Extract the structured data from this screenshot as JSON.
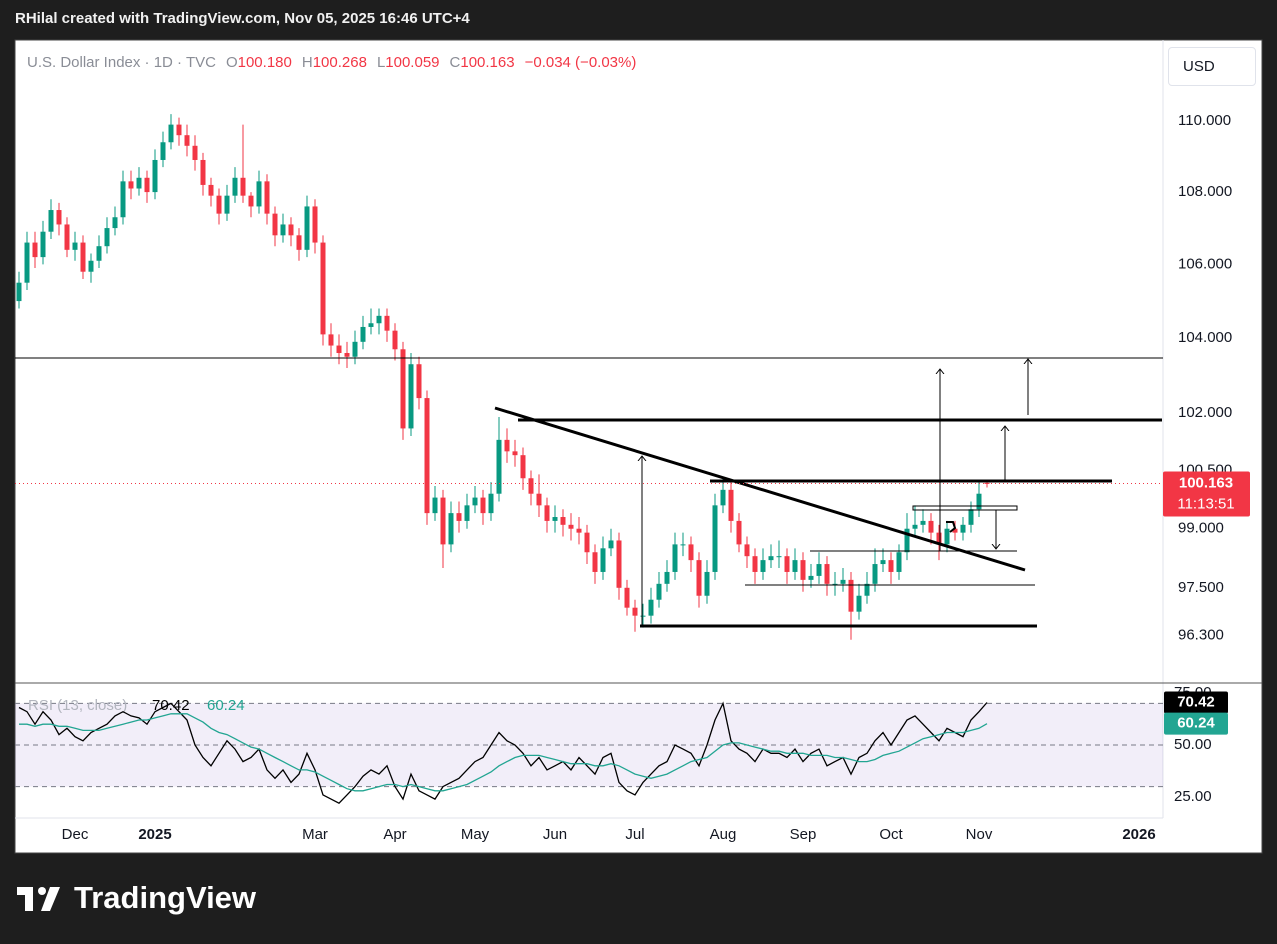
{
  "header": "RHilal created with TradingView.com, Nov 05, 2025 16:46 UTC+4",
  "footer": "TradingView",
  "chart_data": [
    {
      "type": "candlestick",
      "title": "U.S. Dollar Index · 1D · TVC",
      "legend": [
        {
          "label": "O",
          "value": "100.180"
        },
        {
          "label": "H",
          "value": "100.268"
        },
        {
          "label": "L",
          "value": "100.059"
        },
        {
          "label": "C",
          "value": "100.163"
        }
      ],
      "change": "−0.034 (−0.03%)",
      "currency": "USD",
      "last_price_label": "100.163",
      "countdown": "11:13:51",
      "up_color": "#089981",
      "down_color": "#f23645",
      "log_scale": true,
      "grid": false,
      "xlim": [
        -0.5,
        143
      ],
      "xticks": [
        {
          "value": 7,
          "label": "Dec"
        },
        {
          "value": 17,
          "label": "2025"
        },
        {
          "value": 37,
          "label": "Mar"
        },
        {
          "value": 47,
          "label": "Apr"
        },
        {
          "value": 57,
          "label": "May"
        },
        {
          "value": 67,
          "label": "Jun"
        },
        {
          "value": 77,
          "label": "Jul"
        },
        {
          "value": 88,
          "label": "Aug"
        },
        {
          "value": 98,
          "label": "Sep"
        },
        {
          "value": 109,
          "label": "Oct"
        },
        {
          "value": 120,
          "label": "Nov"
        },
        {
          "value": 140,
          "label": "2026"
        }
      ],
      "ylim": [
        95.13,
        112.33
      ],
      "yticks": [
        {
          "value": 110,
          "label": "110.000"
        },
        {
          "value": 108,
          "label": "108.000"
        },
        {
          "value": 106,
          "label": "106.000"
        },
        {
          "value": 104,
          "label": "104.000"
        },
        {
          "value": 102,
          "label": "102.000"
        },
        {
          "value": 100.5,
          "label": "100.500"
        },
        {
          "value": 99,
          "label": "99.000"
        },
        {
          "value": 97.5,
          "label": "97.500"
        },
        {
          "value": 96.3,
          "label": "96.300"
        }
      ],
      "ohlc": [
        [
          105.0,
          105.8,
          104.8,
          105.5
        ],
        [
          105.5,
          106.9,
          105.3,
          106.6
        ],
        [
          106.6,
          106.9,
          105.9,
          106.2
        ],
        [
          106.2,
          107.2,
          106.0,
          106.9
        ],
        [
          106.9,
          107.8,
          106.7,
          107.5
        ],
        [
          107.5,
          107.7,
          106.8,
          107.1
        ],
        [
          107.1,
          107.3,
          106.2,
          106.4
        ],
        [
          106.4,
          106.9,
          106.1,
          106.6
        ],
        [
          106.6,
          106.8,
          105.6,
          105.8
        ],
        [
          105.8,
          106.3,
          105.5,
          106.1
        ],
        [
          106.1,
          106.8,
          105.9,
          106.5
        ],
        [
          106.5,
          107.3,
          106.3,
          107.0
        ],
        [
          107.0,
          107.6,
          106.8,
          107.3
        ],
        [
          107.3,
          108.6,
          107.1,
          108.3
        ],
        [
          108.3,
          108.6,
          107.8,
          108.1
        ],
        [
          108.1,
          108.7,
          107.9,
          108.4
        ],
        [
          108.4,
          108.6,
          107.7,
          108.0
        ],
        [
          108.0,
          109.2,
          107.8,
          108.9
        ],
        [
          108.9,
          109.7,
          108.7,
          109.4
        ],
        [
          109.4,
          110.2,
          109.2,
          109.9
        ],
        [
          109.9,
          110.1,
          109.3,
          109.6
        ],
        [
          109.6,
          109.9,
          109.0,
          109.3
        ],
        [
          109.3,
          109.6,
          108.6,
          108.9
        ],
        [
          108.9,
          109.1,
          107.9,
          108.2
        ],
        [
          108.2,
          108.4,
          107.6,
          107.9
        ],
        [
          107.9,
          108.1,
          107.1,
          107.4
        ],
        [
          107.4,
          108.2,
          107.2,
          107.9
        ],
        [
          107.9,
          108.7,
          107.7,
          108.4
        ],
        [
          108.4,
          109.9,
          107.7,
          107.9
        ],
        [
          107.9,
          108.0,
          107.3,
          107.6
        ],
        [
          107.6,
          108.6,
          107.4,
          108.3
        ],
        [
          108.3,
          108.5,
          107.1,
          107.4
        ],
        [
          107.4,
          107.6,
          106.5,
          106.8
        ],
        [
          106.8,
          107.4,
          106.6,
          107.1
        ],
        [
          107.1,
          107.3,
          106.5,
          106.8
        ],
        [
          106.8,
          107.0,
          106.1,
          106.4
        ],
        [
          106.4,
          107.9,
          106.2,
          107.6
        ],
        [
          107.6,
          107.8,
          106.3,
          106.6
        ],
        [
          106.6,
          106.8,
          103.8,
          104.1
        ],
        [
          104.1,
          104.4,
          103.5,
          103.8
        ],
        [
          103.8,
          104.1,
          103.3,
          103.6
        ],
        [
          103.6,
          103.9,
          103.2,
          103.5
        ],
        [
          103.5,
          104.2,
          103.3,
          103.9
        ],
        [
          103.9,
          104.6,
          103.7,
          104.3
        ],
        [
          104.3,
          104.8,
          104.1,
          104.4
        ],
        [
          104.4,
          104.8,
          104.1,
          104.6
        ],
        [
          104.6,
          104.8,
          103.9,
          104.2
        ],
        [
          104.2,
          104.4,
          103.4,
          103.7
        ],
        [
          103.7,
          103.9,
          101.3,
          101.6
        ],
        [
          101.6,
          103.6,
          101.4,
          103.3
        ],
        [
          103.3,
          103.5,
          102.1,
          102.4
        ],
        [
          102.4,
          102.6,
          99.1,
          99.4
        ],
        [
          99.4,
          100.1,
          99.2,
          99.8
        ],
        [
          99.8,
          100.0,
          98.0,
          98.6
        ],
        [
          98.6,
          99.7,
          98.4,
          99.4
        ],
        [
          99.4,
          99.7,
          98.9,
          99.2
        ],
        [
          99.2,
          99.9,
          99.0,
          99.6
        ],
        [
          99.6,
          100.1,
          99.4,
          99.8
        ],
        [
          99.8,
          100.0,
          99.1,
          99.4
        ],
        [
          99.4,
          100.2,
          99.2,
          99.9
        ],
        [
          99.9,
          101.9,
          99.7,
          101.3
        ],
        [
          101.3,
          101.6,
          100.7,
          101.0
        ],
        [
          101.0,
          101.3,
          100.6,
          100.9
        ],
        [
          100.9,
          101.1,
          100.0,
          100.3
        ],
        [
          100.3,
          100.5,
          99.6,
          99.9
        ],
        [
          99.9,
          100.4,
          99.3,
          99.6
        ],
        [
          99.6,
          99.8,
          98.9,
          99.2
        ],
        [
          99.2,
          99.6,
          98.9,
          99.3
        ],
        [
          99.3,
          99.5,
          98.8,
          99.1
        ],
        [
          99.1,
          99.4,
          98.7,
          99.0
        ],
        [
          99.0,
          99.3,
          98.6,
          98.9
        ],
        [
          98.9,
          99.1,
          98.1,
          98.4
        ],
        [
          98.4,
          98.6,
          97.6,
          97.9
        ],
        [
          97.9,
          98.8,
          97.7,
          98.5
        ],
        [
          98.5,
          99.0,
          98.3,
          98.7
        ],
        [
          98.7,
          98.9,
          97.2,
          97.5
        ],
        [
          97.5,
          97.7,
          96.8,
          97.0
        ],
        [
          97.0,
          97.2,
          96.4,
          96.8
        ],
        [
          96.8,
          97.1,
          96.5,
          96.8
        ],
        [
          96.8,
          97.5,
          96.6,
          97.2
        ],
        [
          97.2,
          97.9,
          97.0,
          97.6
        ],
        [
          97.6,
          98.2,
          97.4,
          97.9
        ],
        [
          97.9,
          98.9,
          97.7,
          98.6
        ],
        [
          98.6,
          98.9,
          98.3,
          98.6
        ],
        [
          98.6,
          98.8,
          97.9,
          98.2
        ],
        [
          98.2,
          98.4,
          97.0,
          97.3
        ],
        [
          97.3,
          98.2,
          97.1,
          97.9
        ],
        [
          97.9,
          99.9,
          97.7,
          99.6
        ],
        [
          99.6,
          100.3,
          99.4,
          100.0
        ],
        [
          100.0,
          100.2,
          98.9,
          99.2
        ],
        [
          99.2,
          99.4,
          98.4,
          98.6
        ],
        [
          98.6,
          98.8,
          98.0,
          98.3
        ],
        [
          98.3,
          98.5,
          97.6,
          97.9
        ],
        [
          97.9,
          98.5,
          97.7,
          98.2
        ],
        [
          98.2,
          98.6,
          98.0,
          98.3
        ],
        [
          98.3,
          98.7,
          98.0,
          98.3
        ],
        [
          98.3,
          98.5,
          97.6,
          97.9
        ],
        [
          97.9,
          98.5,
          97.7,
          98.2
        ],
        [
          98.2,
          98.4,
          97.4,
          97.7
        ],
        [
          97.7,
          98.1,
          97.5,
          97.8
        ],
        [
          97.8,
          98.4,
          97.6,
          98.1
        ],
        [
          98.1,
          98.3,
          97.3,
          97.6
        ],
        [
          97.6,
          97.9,
          97.3,
          97.6
        ],
        [
          97.6,
          98.0,
          97.4,
          97.7
        ],
        [
          97.7,
          97.9,
          96.2,
          96.9
        ],
        [
          96.9,
          97.6,
          96.7,
          97.3
        ],
        [
          97.3,
          97.9,
          97.1,
          97.6
        ],
        [
          97.6,
          98.5,
          97.4,
          98.1
        ],
        [
          98.1,
          98.5,
          97.9,
          98.2
        ],
        [
          98.2,
          98.4,
          97.6,
          97.9
        ],
        [
          97.9,
          98.6,
          97.7,
          98.4
        ],
        [
          98.4,
          99.4,
          98.2,
          99.0
        ],
        [
          99.0,
          99.6,
          98.8,
          99.1
        ],
        [
          99.1,
          99.5,
          98.9,
          99.2
        ],
        [
          99.2,
          99.4,
          98.6,
          98.9
        ],
        [
          98.9,
          99.1,
          98.2,
          98.6
        ],
        [
          98.6,
          99.2,
          98.4,
          99.0
        ],
        [
          99.0,
          99.2,
          98.7,
          98.9
        ],
        [
          98.9,
          99.3,
          98.7,
          99.1
        ],
        [
          99.1,
          99.7,
          98.9,
          99.5
        ],
        [
          99.5,
          100.2,
          99.3,
          99.9
        ],
        [
          100.18,
          100.268,
          100.059,
          100.163
        ]
      ]
    },
    {
      "type": "line",
      "title": "RSI (13, close)",
      "xlim": [
        -0.5,
        143
      ],
      "ylim": [
        14.9,
        79.8
      ],
      "yticks": [
        {
          "value": 75,
          "label": "75.00"
        },
        {
          "value": 50,
          "label": "50.00"
        },
        {
          "value": 25,
          "label": "25.00"
        }
      ],
      "bands": [
        70,
        50,
        30
      ],
      "band_color": "#7e57c2",
      "series": [
        {
          "color": "#000000",
          "values": [
            68,
            66,
            60,
            66,
            62,
            55,
            58,
            54,
            52,
            56,
            58,
            60,
            64,
            66,
            64,
            63,
            60,
            66,
            68,
            70,
            66,
            62,
            50,
            44,
            40,
            46,
            52,
            48,
            42,
            44,
            48,
            38,
            34,
            38,
            32,
            36,
            46,
            38,
            26,
            24,
            22,
            26,
            30,
            35,
            38,
            36,
            40,
            30,
            24,
            36,
            28,
            26,
            24,
            30,
            32,
            34,
            38,
            42,
            44,
            50,
            56,
            52,
            50,
            46,
            40,
            44,
            38,
            40,
            42,
            38,
            44,
            40,
            36,
            44,
            46,
            32,
            28,
            26,
            32,
            36,
            40,
            42,
            50,
            48,
            46,
            40,
            50,
            62,
            70,
            52,
            48,
            46,
            42,
            48,
            46,
            46,
            44,
            48,
            42,
            46,
            48,
            40,
            42,
            44,
            36,
            44,
            46,
            52,
            56,
            50,
            56,
            62,
            64,
            60,
            56,
            52,
            58,
            56,
            54,
            62,
            66,
            70.42
          ]
        },
        {
          "color": "#22a592",
          "values": [
            60,
            60,
            59,
            60,
            60,
            59,
            59,
            58,
            57,
            57,
            57,
            58,
            59,
            60,
            61,
            62,
            62,
            63,
            64,
            65,
            65,
            65,
            63,
            61,
            58,
            56,
            55,
            53,
            51,
            49,
            48,
            46,
            44,
            42,
            40,
            38,
            38,
            37,
            35,
            33,
            31,
            29,
            28,
            28,
            29,
            30,
            31,
            31,
            30,
            31,
            30,
            29,
            28,
            28,
            29,
            30,
            31,
            33,
            35,
            37,
            40,
            42,
            44,
            45,
            45,
            45,
            44,
            43,
            42,
            41,
            41,
            41,
            40,
            40,
            41,
            40,
            38,
            36,
            35,
            34,
            35,
            36,
            38,
            40,
            42,
            43,
            44,
            47,
            50,
            51,
            51,
            50,
            49,
            48,
            47,
            47,
            46,
            46,
            46,
            45,
            45,
            45,
            44,
            44,
            43,
            42,
            42,
            43,
            45,
            46,
            47,
            49,
            51,
            53,
            54,
            55,
            56,
            56,
            56,
            57,
            58,
            60.24
          ]
        }
      ]
    }
  ]
}
